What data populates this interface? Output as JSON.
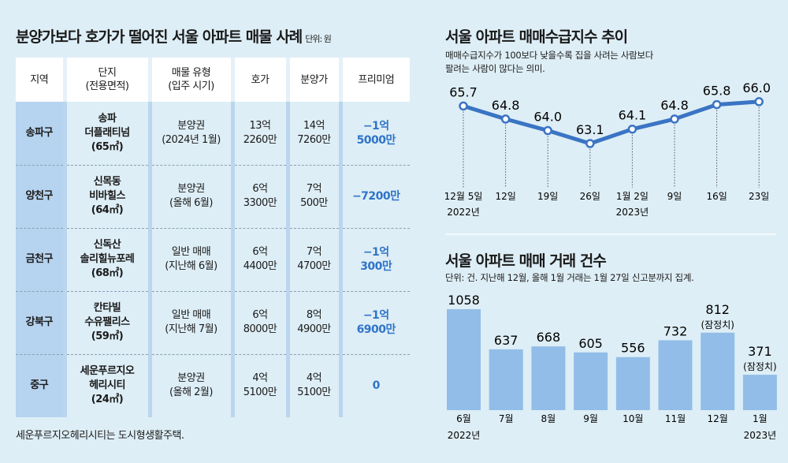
{
  "table_section": {
    "title": "분양가보다 호가가 떨어진 서울 아파트 매물 사례",
    "unit": "단위: 원",
    "headers": [
      "지역",
      "단지\n(전용면적)",
      "매물 유형\n(입주 시기)",
      "호가",
      "분양가",
      "프리미엄"
    ],
    "rows": [
      {
        "region": "송파구",
        "complex": "송파\n더플래티넘\n(65㎡)",
        "type": "분양권\n(2024년 1월)",
        "ask": "13억\n2260만",
        "sale": "14억\n7260만",
        "premium": "−1억\n5000만"
      },
      {
        "region": "양천구",
        "complex": "신목동\n비바힐스\n(64㎡)",
        "type": "분양권\n(올해 6월)",
        "ask": "6억\n3300만",
        "sale": "7억\n500만",
        "premium": "−7200만"
      },
      {
        "region": "금천구",
        "complex": "신독산\n솔리힐뉴포레\n(68㎡)",
        "type": "일반 매매\n(지난해 6월)",
        "ask": "6억\n4400만",
        "sale": "7억\n4700만",
        "premium": "−1억\n300만"
      },
      {
        "region": "강북구",
        "complex": "칸타빌\n수유팰리스\n(59㎡)",
        "type": "일반 매매\n(지난해 7월)",
        "ask": "6억\n8000만",
        "sale": "8억\n4900만",
        "premium": "−1억\n6900만"
      },
      {
        "region": "중구",
        "complex": "세운푸르지오\n헤리시티\n(24㎡)",
        "type": "분양권\n(올해 2월)",
        "ask": "4억\n5100만",
        "sale": "4억\n5100만",
        "premium": "0"
      }
    ],
    "footnote": "세운푸르지오헤리시티는 도시형생활주택."
  },
  "chart_data": [
    {
      "type": "line",
      "title": "서울 아파트 매매수급지수 추이",
      "subtitle": [
        "매매수급지수가 100보다 낮을수록 집을 사려는 사람보다",
        "팔려는 사람이 많다는 의미."
      ],
      "categories": [
        "12월 5일",
        "12일",
        "19일",
        "26일",
        "1월 2일",
        "9일",
        "16일",
        "23일"
      ],
      "year_labels": {
        "0": "2022년",
        "4": "2023년"
      },
      "values": [
        65.7,
        64.8,
        64.0,
        63.1,
        64.1,
        64.8,
        65.8,
        66.0
      ],
      "value_labels": [
        "65.7",
        "64.8",
        "64.0",
        "63.1",
        "64.1",
        "64.8",
        "65.8",
        "66.0"
      ],
      "color": "#3a74c4"
    },
    {
      "type": "bar",
      "title": "서울 아파트 매매 거래 건수",
      "subtitle": "단위: 건. 지난해 12월, 올해 1월 거래는 1월 27일 신고분까지 집계.",
      "categories": [
        "6월",
        "7월",
        "8월",
        "9월",
        "10월",
        "11월",
        "12월",
        "1월"
      ],
      "year_labels": {
        "0": "2022년",
        "7": "2023년"
      },
      "values": [
        1058,
        637,
        668,
        605,
        556,
        732,
        812,
        371
      ],
      "notes": {
        "6": "(잠정치)",
        "7": "(잠정치)"
      },
      "color": "#92bde8"
    }
  ]
}
